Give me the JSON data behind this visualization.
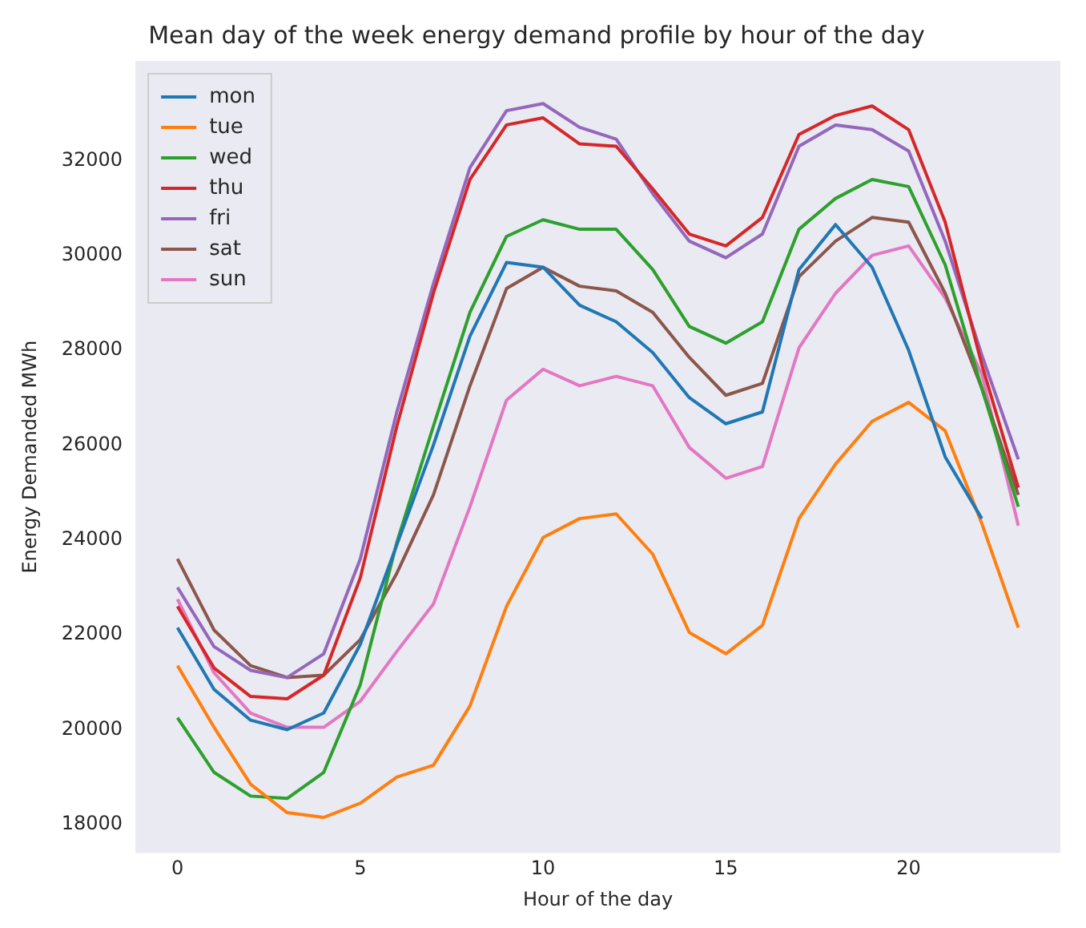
{
  "chart_data": {
    "type": "line",
    "title": "Mean day of the week energy demand profile by hour of the day",
    "xlabel": "Hour of the day",
    "ylabel": "Energy Demanded MWh",
    "x": [
      0,
      1,
      2,
      3,
      4,
      5,
      6,
      7,
      8,
      9,
      10,
      11,
      12,
      13,
      14,
      15,
      16,
      17,
      18,
      19,
      20,
      21,
      22,
      23
    ],
    "xlim": [
      -1.15,
      24.15
    ],
    "xticks": [
      0,
      5,
      10,
      15,
      20
    ],
    "ylim": [
      17400,
      34100
    ],
    "yticks": [
      18000,
      20000,
      22000,
      24000,
      26000,
      28000,
      30000,
      32000
    ],
    "grid": false,
    "legend": "top left",
    "marker": "none",
    "line_style": "solid",
    "series": [
      {
        "name": "mon",
        "color": "#1f77b4",
        "values": [
          22150,
          20850,
          20200,
          20000,
          20350,
          21800,
          23900,
          26000,
          28300,
          29850,
          29750,
          28950,
          28600,
          27950,
          27000,
          26450,
          26700,
          29700,
          30650,
          29750,
          28000,
          25750,
          24450,
          null
        ]
      },
      {
        "name": "tue",
        "color": "#ff7f0e",
        "values": [
          21350,
          20050,
          18850,
          18250,
          18150,
          18450,
          19000,
          19250,
          20500,
          22600,
          24050,
          24450,
          24550,
          23700,
          22050,
          21600,
          22200,
          24450,
          25600,
          26500,
          26900,
          26300,
          24350,
          22150
        ]
      },
      {
        "name": "wed",
        "color": "#2ca02c",
        "values": [
          20250,
          19100,
          18600,
          18550,
          19100,
          20950,
          23950,
          26400,
          28800,
          30400,
          30750,
          30550,
          30550,
          29700,
          28500,
          28150,
          28600,
          30550,
          31200,
          31600,
          31450,
          29800,
          27200,
          24700
        ]
      },
      {
        "name": "thu",
        "color": "#d62728",
        "values": [
          22600,
          21300,
          20700,
          20650,
          21150,
          23200,
          26400,
          29200,
          31600,
          32750,
          32900,
          32350,
          32300,
          31400,
          30450,
          30200,
          30800,
          32550,
          32950,
          33150,
          32650,
          30700,
          27700,
          25100
        ]
      },
      {
        "name": "fri",
        "color": "#9467bd",
        "values": [
          23000,
          21750,
          21250,
          21100,
          21600,
          23600,
          26700,
          29400,
          31850,
          33050,
          33200,
          32700,
          32450,
          31300,
          30300,
          29950,
          30450,
          32300,
          32750,
          32650,
          32200,
          30300,
          27900,
          25700
        ]
      },
      {
        "name": "sat",
        "color": "#8c564b",
        "values": [
          23600,
          22100,
          21350,
          21100,
          21150,
          21900,
          23300,
          24950,
          27250,
          29300,
          29750,
          29350,
          29250,
          28800,
          27850,
          27050,
          27300,
          29550,
          30300,
          30800,
          30700,
          29200,
          27200,
          24950
        ]
      },
      {
        "name": "sun",
        "color": "#e377c2",
        "values": [
          22750,
          21200,
          20350,
          20050,
          20050,
          20600,
          21650,
          22650,
          24700,
          26950,
          27600,
          27250,
          27450,
          27250,
          25950,
          25300,
          25550,
          28050,
          29200,
          30000,
          30200,
          29100,
          27500,
          24300
        ]
      }
    ]
  }
}
